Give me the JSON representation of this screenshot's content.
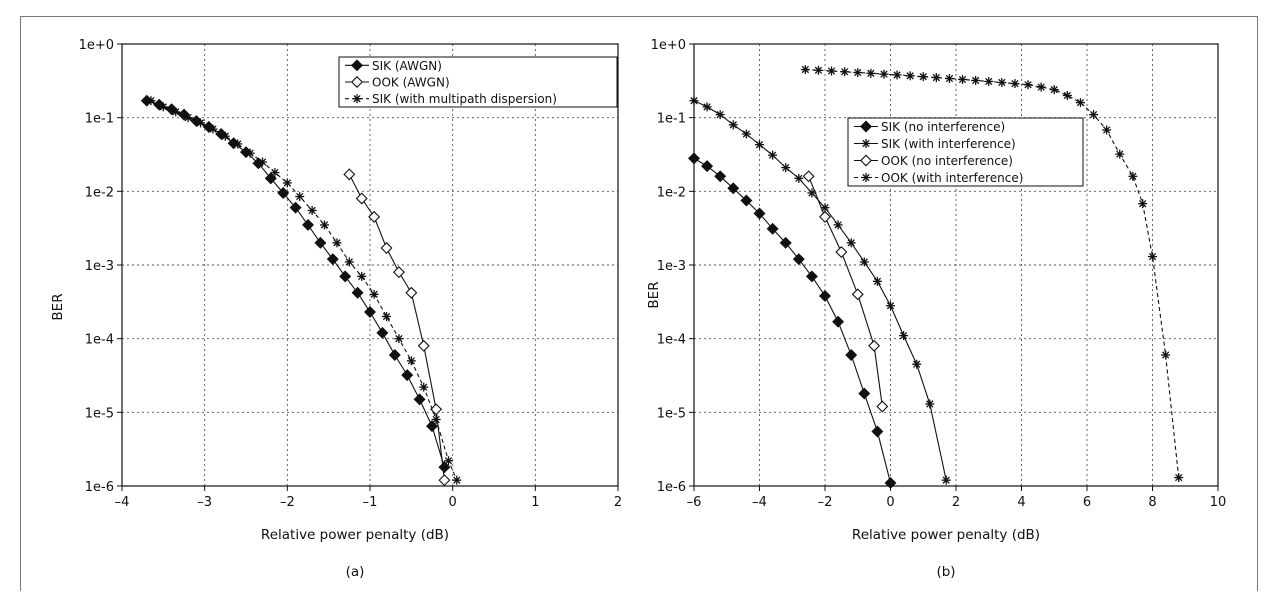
{
  "chart_data": [
    {
      "type": "line",
      "caption": "(a)",
      "xlabel": "Relative power penalty (dB)",
      "ylabel": "BER",
      "xlim": [
        -4,
        2
      ],
      "ylim_log10": [
        -6,
        0
      ],
      "xticks": [
        "-4",
        "-3",
        "-2",
        "-1",
        "0",
        "1",
        "2"
      ],
      "yticks": [
        "1e-6",
        "1e-5",
        "1e-4",
        "1e-3",
        "1e-2",
        "1e-1",
        "1e+0"
      ],
      "grid": true,
      "legend_position": "top-right",
      "series": [
        {
          "name": "SIK (AWGN)",
          "marker": "diamond-filled",
          "line": "solid",
          "x": [
            -3.7,
            -3.55,
            -3.4,
            -3.25,
            -3.1,
            -2.95,
            -2.8,
            -2.65,
            -2.5,
            -2.35,
            -2.2,
            -2.05,
            -1.9,
            -1.75,
            -1.6,
            -1.45,
            -1.3,
            -1.15,
            -1.0,
            -0.85,
            -0.7,
            -0.55,
            -0.4,
            -0.25,
            -0.1
          ],
          "y": [
            0.17,
            0.15,
            0.13,
            0.11,
            0.09,
            0.075,
            0.06,
            0.045,
            0.034,
            0.024,
            0.015,
            0.0095,
            0.006,
            0.0035,
            0.002,
            0.0012,
            0.0007,
            0.00042,
            0.00023,
            0.00012,
            6e-05,
            3.2e-05,
            1.5e-05,
            6.5e-06,
            1.8e-06
          ]
        },
        {
          "name": "OOK (AWGN)",
          "marker": "diamond-open",
          "line": "solid",
          "x": [
            -1.25,
            -1.1,
            -0.95,
            -0.8,
            -0.65,
            -0.5,
            -0.35,
            -0.2,
            -0.1
          ],
          "y": [
            0.017,
            0.008,
            0.0045,
            0.0017,
            0.0008,
            0.00042,
            8e-05,
            1.1e-05,
            1.2e-06
          ]
        },
        {
          "name": "SIK (with multipath dispersion)",
          "marker": "asterisk",
          "line": "dashed",
          "x": [
            -3.65,
            -3.5,
            -3.35,
            -3.2,
            -3.05,
            -2.9,
            -2.75,
            -2.6,
            -2.45,
            -2.3,
            -2.15,
            -2.0,
            -1.85,
            -1.7,
            -1.55,
            -1.4,
            -1.25,
            -1.1,
            -0.95,
            -0.8,
            -0.65,
            -0.5,
            -0.35,
            -0.2,
            -0.05,
            0.05
          ],
          "y": [
            0.17,
            0.14,
            0.12,
            0.1,
            0.085,
            0.07,
            0.056,
            0.044,
            0.033,
            0.025,
            0.018,
            0.013,
            0.0085,
            0.0055,
            0.0035,
            0.002,
            0.0011,
            0.0007,
            0.0004,
            0.0002,
            0.0001,
            5e-05,
            2.2e-05,
            8e-06,
            2.2e-06,
            1.2e-06
          ]
        }
      ]
    },
    {
      "type": "line",
      "caption": "(b)",
      "xlabel": "Relative power penalty (dB)",
      "ylabel": "BER",
      "xlim": [
        -6,
        10
      ],
      "ylim_log10": [
        -6,
        0
      ],
      "xticks": [
        "-6",
        "-4",
        "-2",
        "0",
        "2",
        "4",
        "6",
        "8",
        "10"
      ],
      "yticks": [
        "1e-6",
        "1e-5",
        "1e-4",
        "1e-3",
        "1e-2",
        "1e-1",
        "1e+0"
      ],
      "grid": true,
      "legend_position": "upper-middle",
      "series": [
        {
          "name": "SIK (no interference)",
          "marker": "diamond-filled",
          "line": "solid",
          "x": [
            -6,
            -5.6,
            -5.2,
            -4.8,
            -4.4,
            -4.0,
            -3.6,
            -3.2,
            -2.8,
            -2.4,
            -2.0,
            -1.6,
            -1.2,
            -0.8,
            -0.4,
            0
          ],
          "y": [
            0.028,
            0.022,
            0.016,
            0.011,
            0.0075,
            0.005,
            0.0031,
            0.002,
            0.0012,
            0.0007,
            0.00038,
            0.00017,
            6e-05,
            1.8e-05,
            5.5e-06,
            1.1e-06
          ]
        },
        {
          "name": "SIK (with interference)",
          "marker": "asterisk",
          "line": "solid",
          "x": [
            -6,
            -5.6,
            -5.2,
            -4.8,
            -4.4,
            -4.0,
            -3.6,
            -3.2,
            -2.8,
            -2.4,
            -2.0,
            -1.6,
            -1.2,
            -0.8,
            -0.4,
            0,
            0.4,
            0.8,
            1.2,
            1.7
          ],
          "y": [
            0.17,
            0.14,
            0.11,
            0.08,
            0.06,
            0.043,
            0.031,
            0.021,
            0.015,
            0.0095,
            0.006,
            0.0035,
            0.002,
            0.0011,
            0.0006,
            0.00028,
            0.00011,
            4.5e-05,
            1.3e-05,
            1.2e-06
          ]
        },
        {
          "name": "OOK (no interference)",
          "marker": "diamond-open",
          "line": "solid",
          "x": [
            -2.5,
            -2.0,
            -1.5,
            -1.0,
            -0.5,
            -0.25
          ],
          "y": [
            0.016,
            0.0045,
            0.0015,
            0.0004,
            8e-05,
            1.2e-05
          ]
        },
        {
          "name": "OOK (with interference)",
          "marker": "asterisk",
          "line": "dashed",
          "x": [
            -2.6,
            -2.2,
            -1.8,
            -1.4,
            -1.0,
            -0.6,
            -0.2,
            0.2,
            0.6,
            1.0,
            1.4,
            1.8,
            2.2,
            2.6,
            3.0,
            3.4,
            3.8,
            4.2,
            4.6,
            5.0,
            5.4,
            5.8,
            6.2,
            6.6,
            7.0,
            7.4,
            7.7,
            8.0,
            8.4,
            8.8
          ],
          "y": [
            0.45,
            0.44,
            0.43,
            0.42,
            0.41,
            0.4,
            0.39,
            0.38,
            0.37,
            0.36,
            0.35,
            0.34,
            0.33,
            0.32,
            0.31,
            0.3,
            0.29,
            0.28,
            0.26,
            0.24,
            0.2,
            0.16,
            0.11,
            0.068,
            0.032,
            0.016,
            0.0068,
            0.0013,
            6e-05,
            1.3e-06
          ]
        }
      ]
    }
  ]
}
